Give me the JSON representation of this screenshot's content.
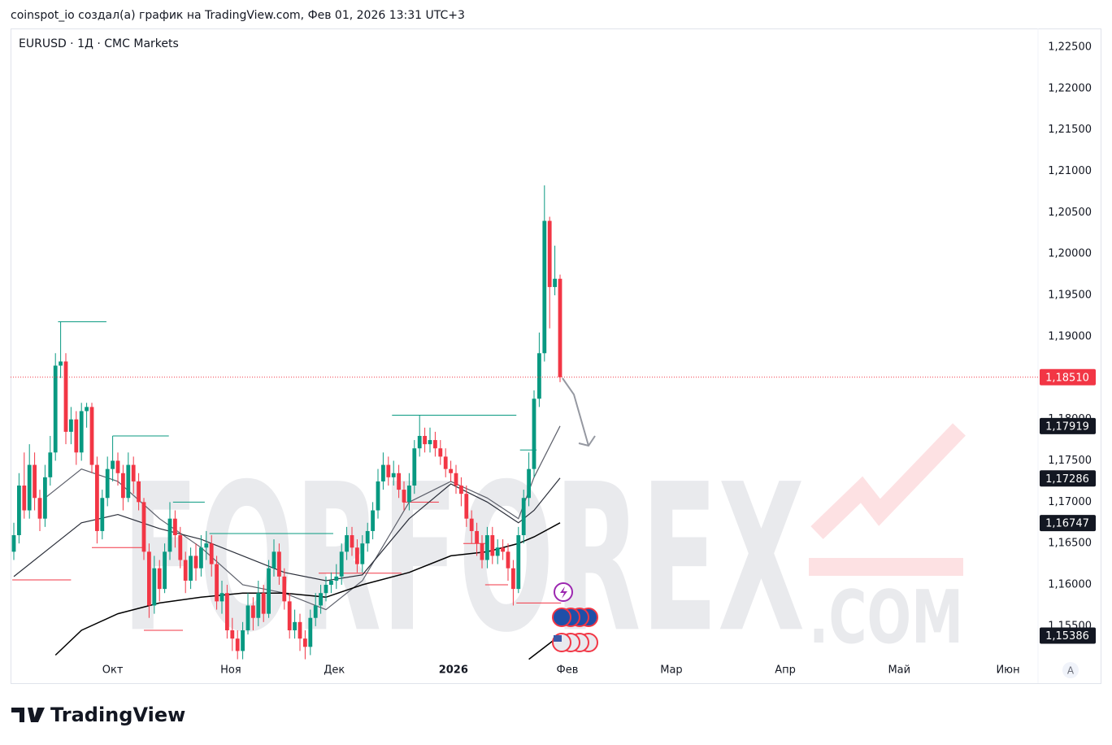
{
  "header": {
    "credit": "coinspot_io создал(а) график на TradingView.com, Фев 01, 2026 13:31 UTC+3"
  },
  "footer": {
    "logo": "TradingView"
  },
  "chart_data": {
    "type": "candlestick",
    "symbol": "EURUSD · 1Д · CMC Markets",
    "watermark": "FORFOREX",
    "watermark_domain": ".COM",
    "up_color": "#089981",
    "down_color": "#f23645",
    "grid": false,
    "axis_button": "A",
    "xlim": [
      -0.625,
      196.875
    ],
    "ylim": [
      1.15086,
      1.22726
    ],
    "xticks": [
      {
        "value": 19,
        "label": "Окт"
      },
      {
        "value": 41.7,
        "label": "Ноя"
      },
      {
        "value": 61.6,
        "label": "Дек"
      },
      {
        "value": 84.5,
        "label": "2026"
      },
      {
        "value": 106.4,
        "label": "Фев"
      },
      {
        "value": 126.4,
        "label": "Мар"
      },
      {
        "value": 148.3,
        "label": "Апр"
      },
      {
        "value": 170.2,
        "label": "Май"
      },
      {
        "value": 191.1,
        "label": "Июн"
      }
    ],
    "yticks": [
      {
        "value": 1.155,
        "label": "1,15500"
      },
      {
        "value": 1.16,
        "label": "1,16000"
      },
      {
        "value": 1.165,
        "label": "1,16500"
      },
      {
        "value": 1.17,
        "label": "1,17000"
      },
      {
        "value": 1.175,
        "label": "1,17500"
      },
      {
        "value": 1.18,
        "label": "1,18000"
      },
      {
        "value": 1.185,
        "label": "1,18500"
      },
      {
        "value": 1.19,
        "label": "1,19000"
      },
      {
        "value": 1.195,
        "label": "1,19500"
      },
      {
        "value": 1.2,
        "label": "1,20000"
      },
      {
        "value": 1.205,
        "label": "1,20500"
      },
      {
        "value": 1.21,
        "label": "1,21000"
      },
      {
        "value": 1.215,
        "label": "1,21500"
      },
      {
        "value": 1.22,
        "label": "1,22000"
      },
      {
        "value": 1.225,
        "label": "1,22500"
      }
    ],
    "open": [
      1.164,
      1.166,
      1.172,
      1.169,
      1.1745,
      1.1705,
      1.168,
      1.173,
      1.176,
      1.1865,
      1.187,
      1.1785,
      1.18,
      1.176,
      1.181,
      1.1815,
      1.1745,
      1.1665,
      1.1705,
      1.174,
      1.175,
      1.1735,
      1.1705,
      1.1745,
      1.1725,
      1.17,
      1.164,
      1.1575,
      1.162,
      1.1595,
      1.164,
      1.168,
      1.166,
      1.163,
      1.1605,
      1.1635,
      1.162,
      1.1645,
      1.165,
      1.1625,
      1.158,
      1.159,
      1.1545,
      1.1535,
      1.152,
      1.1545,
      1.1575,
      1.156,
      1.159,
      1.1565,
      1.162,
      1.164,
      1.161,
      1.158,
      1.1545,
      1.1555,
      1.1535,
      1.1525,
      1.156,
      1.1575,
      1.159,
      1.16,
      1.1605,
      1.161,
      1.164,
      1.166,
      1.1645,
      1.1625,
      1.165,
      1.1665,
      1.169,
      1.1725,
      1.1745,
      1.173,
      1.1735,
      1.1715,
      1.17,
      1.172,
      1.1765,
      1.178,
      1.177,
      1.1775,
      1.1765,
      1.1755,
      1.174,
      1.1735,
      1.172,
      1.171,
      1.168,
      1.1665,
      1.165,
      1.163,
      1.166,
      1.1635,
      1.1645,
      1.164,
      1.162,
      1.1595,
      1.166,
      1.1705,
      1.174,
      1.1825,
      1.188,
      1.204,
      1.196,
      1.197
    ],
    "high": [
      1.1675,
      1.1735,
      1.176,
      1.177,
      1.176,
      1.1715,
      1.1745,
      1.178,
      1.188,
      1.1918,
      1.188,
      1.1815,
      1.181,
      1.182,
      1.182,
      1.182,
      1.1755,
      1.1715,
      1.1755,
      1.178,
      1.176,
      1.1745,
      1.176,
      1.1755,
      1.1735,
      1.1705,
      1.165,
      1.1635,
      1.163,
      1.165,
      1.17,
      1.169,
      1.167,
      1.164,
      1.1645,
      1.165,
      1.166,
      1.1665,
      1.166,
      1.1635,
      1.1605,
      1.16,
      1.156,
      1.1545,
      1.1555,
      1.159,
      1.1585,
      1.1605,
      1.16,
      1.163,
      1.1655,
      1.165,
      1.162,
      1.159,
      1.157,
      1.1565,
      1.1545,
      1.157,
      1.159,
      1.16,
      1.161,
      1.1615,
      1.1625,
      1.165,
      1.167,
      1.167,
      1.1655,
      1.166,
      1.1675,
      1.17,
      1.174,
      1.176,
      1.1755,
      1.175,
      1.1745,
      1.1725,
      1.1735,
      1.1775,
      1.1805,
      1.179,
      1.179,
      1.1785,
      1.1775,
      1.1765,
      1.175,
      1.1745,
      1.173,
      1.172,
      1.169,
      1.1675,
      1.166,
      1.167,
      1.167,
      1.1655,
      1.1655,
      1.165,
      1.163,
      1.167,
      1.1715,
      1.176,
      1.1835,
      1.1905,
      1.2083,
      1.2045,
      1.201,
      1.1975
    ],
    "low": [
      1.163,
      1.165,
      1.168,
      1.168,
      1.169,
      1.1665,
      1.167,
      1.172,
      1.175,
      1.185,
      1.177,
      1.177,
      1.1745,
      1.175,
      1.179,
      1.1735,
      1.165,
      1.1655,
      1.1695,
      1.1725,
      1.172,
      1.169,
      1.17,
      1.171,
      1.169,
      1.163,
      1.156,
      1.1565,
      1.158,
      1.159,
      1.163,
      1.1645,
      1.162,
      1.159,
      1.1595,
      1.1605,
      1.161,
      1.163,
      1.161,
      1.157,
      1.1565,
      1.1535,
      1.152,
      1.151,
      1.151,
      1.154,
      1.1545,
      1.155,
      1.1555,
      1.156,
      1.161,
      1.16,
      1.157,
      1.1535,
      1.1535,
      1.152,
      1.151,
      1.1515,
      1.155,
      1.1565,
      1.158,
      1.159,
      1.1595,
      1.16,
      1.163,
      1.1635,
      1.1615,
      1.1615,
      1.164,
      1.1655,
      1.168,
      1.1715,
      1.172,
      1.172,
      1.1705,
      1.169,
      1.169,
      1.171,
      1.1755,
      1.176,
      1.176,
      1.1755,
      1.1745,
      1.173,
      1.1725,
      1.171,
      1.1695,
      1.167,
      1.165,
      1.1635,
      1.162,
      1.162,
      1.1625,
      1.1625,
      1.163,
      1.1605,
      1.1575,
      1.159,
      1.165,
      1.1695,
      1.173,
      1.1815,
      1.187,
      1.191,
      1.195,
      1.1845
    ],
    "close": [
      1.166,
      1.172,
      1.169,
      1.1745,
      1.1705,
      1.168,
      1.173,
      1.176,
      1.1865,
      1.187,
      1.1785,
      1.18,
      1.176,
      1.181,
      1.1815,
      1.1745,
      1.1665,
      1.1705,
      1.174,
      1.175,
      1.1735,
      1.1705,
      1.1745,
      1.1725,
      1.17,
      1.164,
      1.1575,
      1.162,
      1.1595,
      1.164,
      1.168,
      1.166,
      1.163,
      1.1605,
      1.1635,
      1.162,
      1.1645,
      1.165,
      1.1625,
      1.158,
      1.159,
      1.1545,
      1.1535,
      1.152,
      1.1545,
      1.1575,
      1.156,
      1.159,
      1.1565,
      1.162,
      1.164,
      1.161,
      1.158,
      1.1545,
      1.1555,
      1.1535,
      1.1525,
      1.156,
      1.1575,
      1.159,
      1.16,
      1.1605,
      1.161,
      1.164,
      1.166,
      1.1645,
      1.1625,
      1.165,
      1.1665,
      1.169,
      1.1725,
      1.1745,
      1.173,
      1.1735,
      1.1715,
      1.17,
      1.172,
      1.1765,
      1.178,
      1.177,
      1.1775,
      1.1765,
      1.1755,
      1.174,
      1.1735,
      1.172,
      1.171,
      1.168,
      1.1665,
      1.165,
      1.163,
      1.166,
      1.1635,
      1.1645,
      1.164,
      1.162,
      1.1595,
      1.166,
      1.1705,
      1.174,
      1.1825,
      1.188,
      1.204,
      1.196,
      1.197,
      1.1851
    ],
    "last_price": {
      "value": 1.1851,
      "label": "1,18510",
      "color": "#f23645"
    },
    "lines": [
      {
        "color": "#5d606b",
        "width": 1.2,
        "x": [
          6,
          13,
          20,
          28,
          36,
          44,
          52,
          60,
          67,
          76,
          84,
          91,
          97,
          100,
          105
        ],
        "values": [
          1.1705,
          1.174,
          1.1725,
          1.168,
          1.1645,
          1.16,
          1.159,
          1.157,
          1.1605,
          1.17,
          1.1725,
          1.1705,
          1.168,
          1.173,
          1.1792
        ],
        "last": {
          "value": 1.17919,
          "label": "1,17919"
        }
      },
      {
        "color": "#2a2e39",
        "width": 1.2,
        "x": [
          0,
          8,
          13,
          20,
          28,
          36,
          44,
          52,
          60,
          67,
          76,
          84,
          91,
          97,
          100,
          105
        ],
        "values": [
          1.161,
          1.165,
          1.1675,
          1.1685,
          1.1668,
          1.1655,
          1.1635,
          1.1615,
          1.1605,
          1.1612,
          1.168,
          1.1722,
          1.17,
          1.1675,
          1.169,
          1.1729
        ],
        "last": {
          "value": 1.17286,
          "label": "1,17286"
        }
      },
      {
        "color": "#000000",
        "width": 1.5,
        "x": [
          8,
          13,
          20,
          28,
          36,
          44,
          52,
          60,
          67,
          76,
          84,
          91,
          97,
          100,
          105
        ],
        "values": [
          1.1515,
          1.1545,
          1.1565,
          1.1578,
          1.1585,
          1.159,
          1.159,
          1.1585,
          1.16,
          1.1615,
          1.1635,
          1.164,
          1.165,
          1.1658,
          1.1675
        ],
        "last": {
          "value": 1.16747,
          "label": "1,16747"
        }
      },
      {
        "color": "#000000",
        "width": 1.5,
        "x": [
          99,
          105
        ],
        "values": [
          1.151,
          1.1539
        ],
        "last": {
          "value": 1.15386,
          "label": "1,15386"
        }
      }
    ],
    "label_color": "#131722",
    "levels": [
      {
        "from": 8.5,
        "to": 17.8,
        "price": 1.1918,
        "color": "#089981"
      },
      {
        "from": 19,
        "to": 29.8,
        "price": 1.178,
        "color": "#089981"
      },
      {
        "from": 30.6,
        "to": 36.7,
        "price": 1.17,
        "color": "#089981"
      },
      {
        "from": 37.6,
        "to": 61.4,
        "price": 1.1662,
        "color": "#089981"
      },
      {
        "from": 72.7,
        "to": 96.6,
        "price": 1.1805,
        "color": "#089981"
      },
      {
        "from": 97.3,
        "to": 100.5,
        "price": 1.1763,
        "color": "#089981"
      },
      {
        "from": -0.3,
        "to": 11,
        "price": 1.1606,
        "color": "#f23645"
      },
      {
        "from": 15,
        "to": 25,
        "price": 1.1645,
        "color": "#f23645"
      },
      {
        "from": 25,
        "to": 32.5,
        "price": 1.1545,
        "color": "#f23645"
      },
      {
        "from": 58.6,
        "to": 74.5,
        "price": 1.1614,
        "color": "#f23645"
      },
      {
        "from": 74.7,
        "to": 81.7,
        "price": 1.17,
        "color": "#f23645"
      },
      {
        "from": 86.4,
        "to": 91.1,
        "price": 1.165,
        "color": "#f23645"
      },
      {
        "from": 90.6,
        "to": 95,
        "price": 1.16,
        "color": "#f23645"
      },
      {
        "from": 96.6,
        "to": 105.2,
        "price": 1.1578,
        "color": "#f23645"
      }
    ]
  }
}
